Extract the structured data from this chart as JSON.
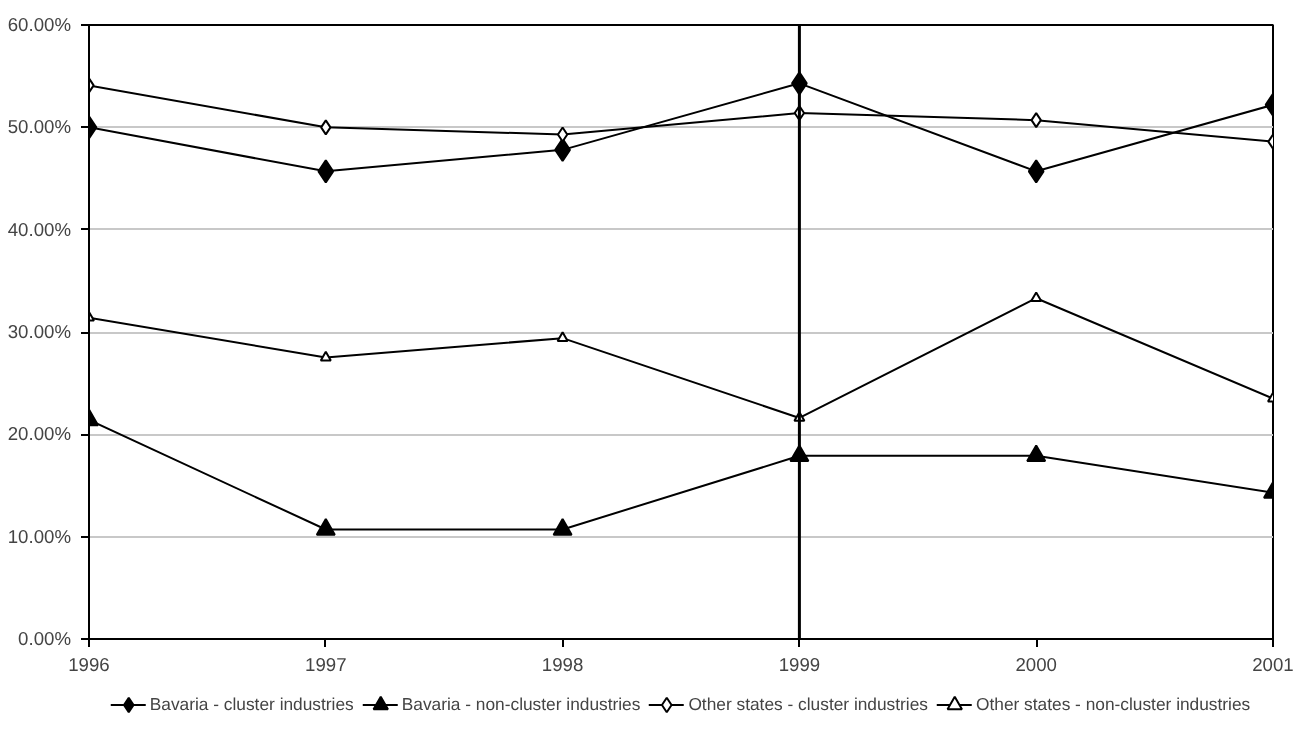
{
  "chart_data": {
    "type": "line",
    "x": [
      1996,
      1997,
      1998,
      1999,
      2000,
      2001
    ],
    "xlim": [
      1996,
      2001
    ],
    "xticks": [
      1996,
      1997,
      1998,
      1999,
      2000,
      2001
    ],
    "ylim": [
      0,
      60
    ],
    "yticks": [
      {
        "value": 0,
        "label": "0.00%"
      },
      {
        "value": 10,
        "label": "10.00%"
      },
      {
        "value": 20,
        "label": "20.00%"
      },
      {
        "value": 30,
        "label": "30.00%"
      },
      {
        "value": 40,
        "label": "40.00%"
      },
      {
        "value": 50,
        "label": "50.00%"
      },
      {
        "value": 60,
        "label": "60.00%"
      }
    ],
    "grid": "y",
    "legend": "bottom",
    "line_style": "solid",
    "ref_lines": [
      {
        "axis": "x",
        "value": 1999,
        "color": "#000000"
      }
    ],
    "series": [
      {
        "name": "Bavaria - cluster industries",
        "color": "#000000",
        "marker": "diamond",
        "values": [
          50.0,
          45.7,
          47.8,
          54.3,
          45.7,
          52.2
        ]
      },
      {
        "name": "Bavaria - non-cluster industries",
        "color": "#000000",
        "marker": "triangle",
        "values": [
          21.4,
          10.7,
          10.7,
          17.9,
          17.9,
          14.3
        ]
      },
      {
        "name": "Other states - cluster industries",
        "color": "#000000",
        "marker": "diamond",
        "values": [
          54.1,
          50.0,
          49.3,
          51.4,
          50.7,
          48.6
        ]
      },
      {
        "name": "Other states - non-cluster industries",
        "color": "#000000",
        "marker": "triangle",
        "values": [
          31.4,
          27.5,
          29.4,
          21.6,
          33.3,
          23.5
        ]
      }
    ]
  }
}
